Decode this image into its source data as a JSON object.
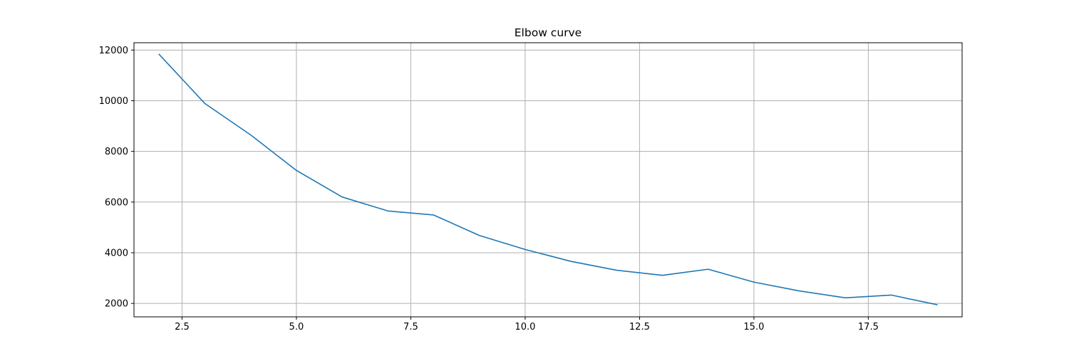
{
  "chart_data": {
    "type": "line",
    "title": "Elbow curve",
    "xlabel": "",
    "ylabel": "",
    "xlim": [
      1.45,
      19.55
    ],
    "ylim": [
      1470,
      12290
    ],
    "grid": true,
    "x_ticks": [
      2.5,
      5.0,
      7.5,
      10.0,
      12.5,
      15.0,
      17.5
    ],
    "x_tick_labels": [
      "2.5",
      "5.0",
      "7.5",
      "10.0",
      "12.5",
      "15.0",
      "17.5"
    ],
    "y_ticks": [
      2000,
      4000,
      6000,
      8000,
      10000,
      12000
    ],
    "y_tick_labels": [
      "2000",
      "4000",
      "6000",
      "8000",
      "10000",
      "12000"
    ],
    "series": [
      {
        "color": "#1f77b4",
        "x": [
          2,
          3,
          4,
          5,
          6,
          7,
          8,
          9,
          10,
          11,
          12,
          13,
          14,
          15,
          16,
          17,
          18,
          19
        ],
        "y": [
          11830,
          9890,
          8650,
          7250,
          6200,
          5650,
          5490,
          4680,
          4130,
          3660,
          3310,
          3110,
          3350,
          2840,
          2490,
          2220,
          2330,
          1950
        ]
      }
    ]
  }
}
